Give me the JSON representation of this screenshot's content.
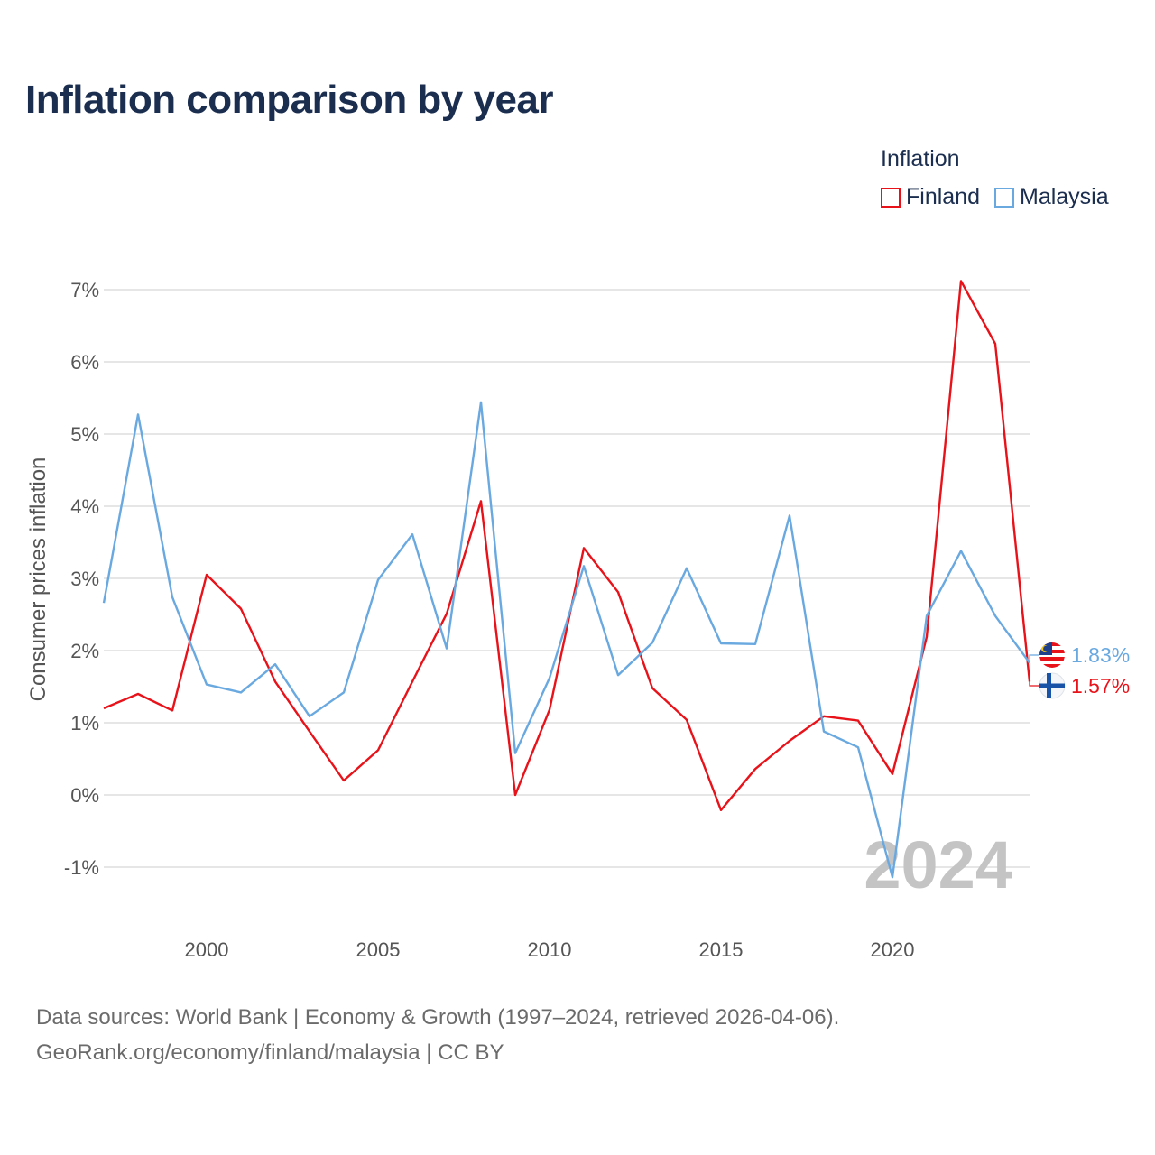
{
  "header": {
    "title": "Inflation comparison by year"
  },
  "legend": {
    "title": "Inflation",
    "items": [
      {
        "label": "Finland",
        "color": "#e8131a"
      },
      {
        "label": "Malaysia",
        "color": "#6aa9e0"
      }
    ]
  },
  "chart_data": {
    "type": "line",
    "title": "Inflation comparison by year",
    "xlabel": "",
    "ylabel": "Consumer prices inflation",
    "x": [
      1997,
      1998,
      1999,
      2000,
      2001,
      2002,
      2003,
      2004,
      2005,
      2006,
      2007,
      2008,
      2009,
      2010,
      2011,
      2012,
      2013,
      2014,
      2015,
      2016,
      2017,
      2018,
      2019,
      2020,
      2021,
      2022,
      2023,
      2024
    ],
    "xlim": [
      1997,
      2024
    ],
    "ylim": [
      -1.5,
      7.5
    ],
    "x_ticks": [
      2000,
      2005,
      2010,
      2015,
      2020
    ],
    "x_tick_labels": [
      "2000",
      "2005",
      "2010",
      "2015",
      "2020"
    ],
    "y_ticks": [
      -1,
      0,
      1,
      2,
      3,
      4,
      5,
      6,
      7
    ],
    "y_tick_labels": [
      "-1%",
      "0%",
      "1%",
      "2%",
      "3%",
      "4%",
      "5%",
      "6%",
      "7%"
    ],
    "grid": true,
    "watermark": "2024",
    "series": [
      {
        "name": "Finland",
        "color": "#e8131a",
        "values": [
          1.2,
          1.4,
          1.17,
          3.05,
          2.58,
          1.57,
          0.88,
          0.2,
          0.62,
          1.57,
          2.51,
          4.07,
          0.0,
          1.18,
          3.42,
          2.81,
          1.48,
          1.04,
          -0.21,
          0.36,
          0.75,
          1.09,
          1.03,
          0.29,
          2.19,
          7.12,
          6.25,
          1.57
        ],
        "end_label": "1.57%"
      },
      {
        "name": "Malaysia",
        "color": "#6aa9e0",
        "values": [
          2.66,
          5.27,
          2.74,
          1.53,
          1.42,
          1.81,
          1.09,
          1.42,
          2.98,
          3.61,
          2.03,
          5.44,
          0.58,
          1.62,
          3.17,
          1.66,
          2.11,
          3.14,
          2.1,
          2.09,
          3.87,
          0.88,
          0.66,
          -1.14,
          2.48,
          3.38,
          2.48,
          1.83
        ],
        "end_label": "1.83%"
      }
    ]
  },
  "footer": {
    "line1": "Data sources: World Bank | Economy & Growth (1997–2024, retrieved 2026-04-06).",
    "line2": "GeoRank.org/economy/finland/malaysia | CC BY"
  }
}
